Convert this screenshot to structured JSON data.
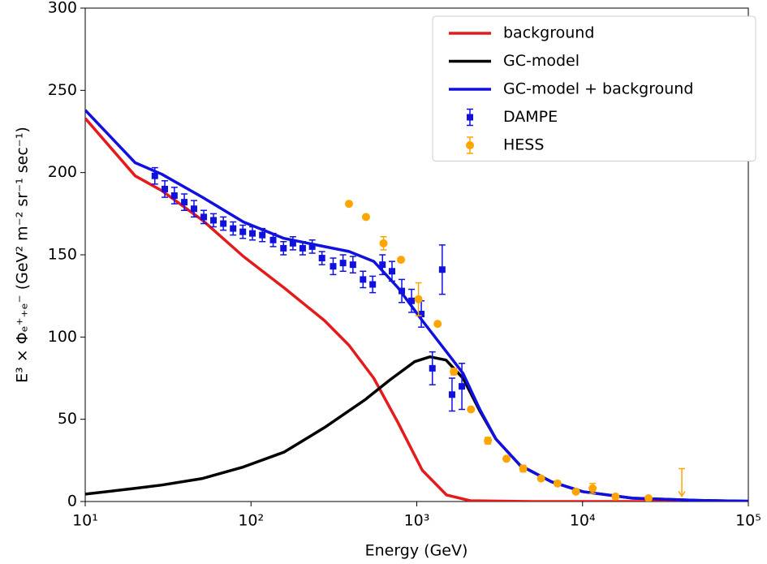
{
  "chart_data": {
    "type": "line",
    "xlabel": "Energy (GeV)",
    "ylabel": "E³ × Φₑ⁺₊ₑ⁻  (GeV² m⁻² sr⁻¹ sec⁻¹)",
    "xscale": "log",
    "xlim": [
      10,
      100000
    ],
    "ylim": [
      0,
      300
    ],
    "xticks": [
      {
        "value": 10,
        "label": "10¹"
      },
      {
        "value": 100,
        "label": "10²"
      },
      {
        "value": 1000,
        "label": "10³"
      },
      {
        "value": 10000,
        "label": "10⁴"
      },
      {
        "value": 100000,
        "label": "10⁵"
      }
    ],
    "yticks": [
      0,
      50,
      100,
      150,
      200,
      250,
      300
    ],
    "legend": "upper right",
    "series": [
      {
        "name": "background",
        "color": "#e41a1c",
        "kind": "line",
        "x": [
          10,
          20,
          29,
          51,
          90,
          158,
          278,
          390,
          550,
          770,
          1080,
          1510,
          2100,
          5000,
          100000
        ],
        "values": [
          233,
          198,
          189,
          171,
          149,
          130,
          110,
          95,
          75,
          48,
          19,
          4,
          0.5,
          0,
          0
        ]
      },
      {
        "name": "GC-model",
        "color": "#000000",
        "kind": "line",
        "x": [
          10,
          20,
          29,
          51,
          90,
          158,
          278,
          490,
          690,
          970,
          1200,
          1500,
          1900,
          2400,
          3000,
          4200,
          6500,
          10000,
          20000,
          50000,
          100000
        ],
        "values": [
          4.5,
          8,
          10,
          14,
          21,
          30,
          45,
          62,
          74,
          85,
          88,
          86,
          75,
          55,
          38,
          22,
          12,
          6,
          2,
          0.7,
          0.2
        ]
      },
      {
        "name": "GC-model + background",
        "color": "#1010e0",
        "kind": "line",
        "x": [
          10,
          20,
          29,
          51,
          90,
          158,
          278,
          390,
          550,
          770,
          1080,
          1510,
          1900,
          2400,
          3000,
          4200,
          6500,
          10000,
          20000,
          50000,
          100000
        ],
        "values": [
          238,
          206,
          199,
          185,
          170,
          160,
          155,
          152,
          146,
          130,
          110,
          91,
          78,
          56,
          38,
          22,
          12,
          6,
          2,
          0.7,
          0.2
        ]
      },
      {
        "name": "DAMPE",
        "color": "#1010e0",
        "kind": "errorbar",
        "marker": "square",
        "x": [
          26.3,
          30.2,
          34.5,
          39.6,
          45.3,
          51.9,
          59.4,
          68.1,
          78,
          89.3,
          102,
          117,
          136,
          157,
          179,
          205,
          234,
          268,
          313,
          359,
          412,
          474,
          542,
          621,
          709,
          812,
          930,
          1065,
          1242,
          1424,
          1632,
          1871
        ],
        "values": [
          198,
          190,
          186,
          182,
          178,
          173,
          171,
          169,
          166,
          164,
          163,
          162,
          159,
          154,
          157,
          154,
          155,
          148,
          143,
          145,
          144,
          135,
          132,
          144,
          140,
          128,
          122,
          114,
          81,
          141,
          65,
          70
        ],
        "errors": [
          5,
          5,
          5,
          5,
          5,
          4,
          4,
          4,
          4,
          4,
          4,
          4,
          4,
          4,
          4,
          4,
          4,
          4,
          5,
          5,
          5,
          5,
          5,
          6,
          6,
          7,
          7,
          8,
          10,
          15,
          10,
          14
        ]
      },
      {
        "name": "HESS",
        "color": "#ffa500",
        "kind": "errorbar",
        "marker": "circle",
        "x": [
          390,
          494,
          630,
          803,
          1024,
          1336,
          1674,
          2122,
          2686,
          3474,
          4381,
          5620,
          7060,
          9120,
          11500,
          15800,
          25000
        ],
        "values": [
          181,
          173,
          157,
          147,
          123,
          108,
          79,
          56,
          37,
          26,
          20,
          14,
          11,
          6,
          8,
          3,
          2
        ],
        "errors": [
          1,
          1,
          4,
          1,
          10,
          1,
          2,
          1,
          2,
          1,
          2,
          1,
          1,
          1,
          3,
          1,
          1
        ],
        "upper_limits": {
          "x": [
            39700
          ],
          "values": [
            20
          ]
        }
      }
    ]
  }
}
